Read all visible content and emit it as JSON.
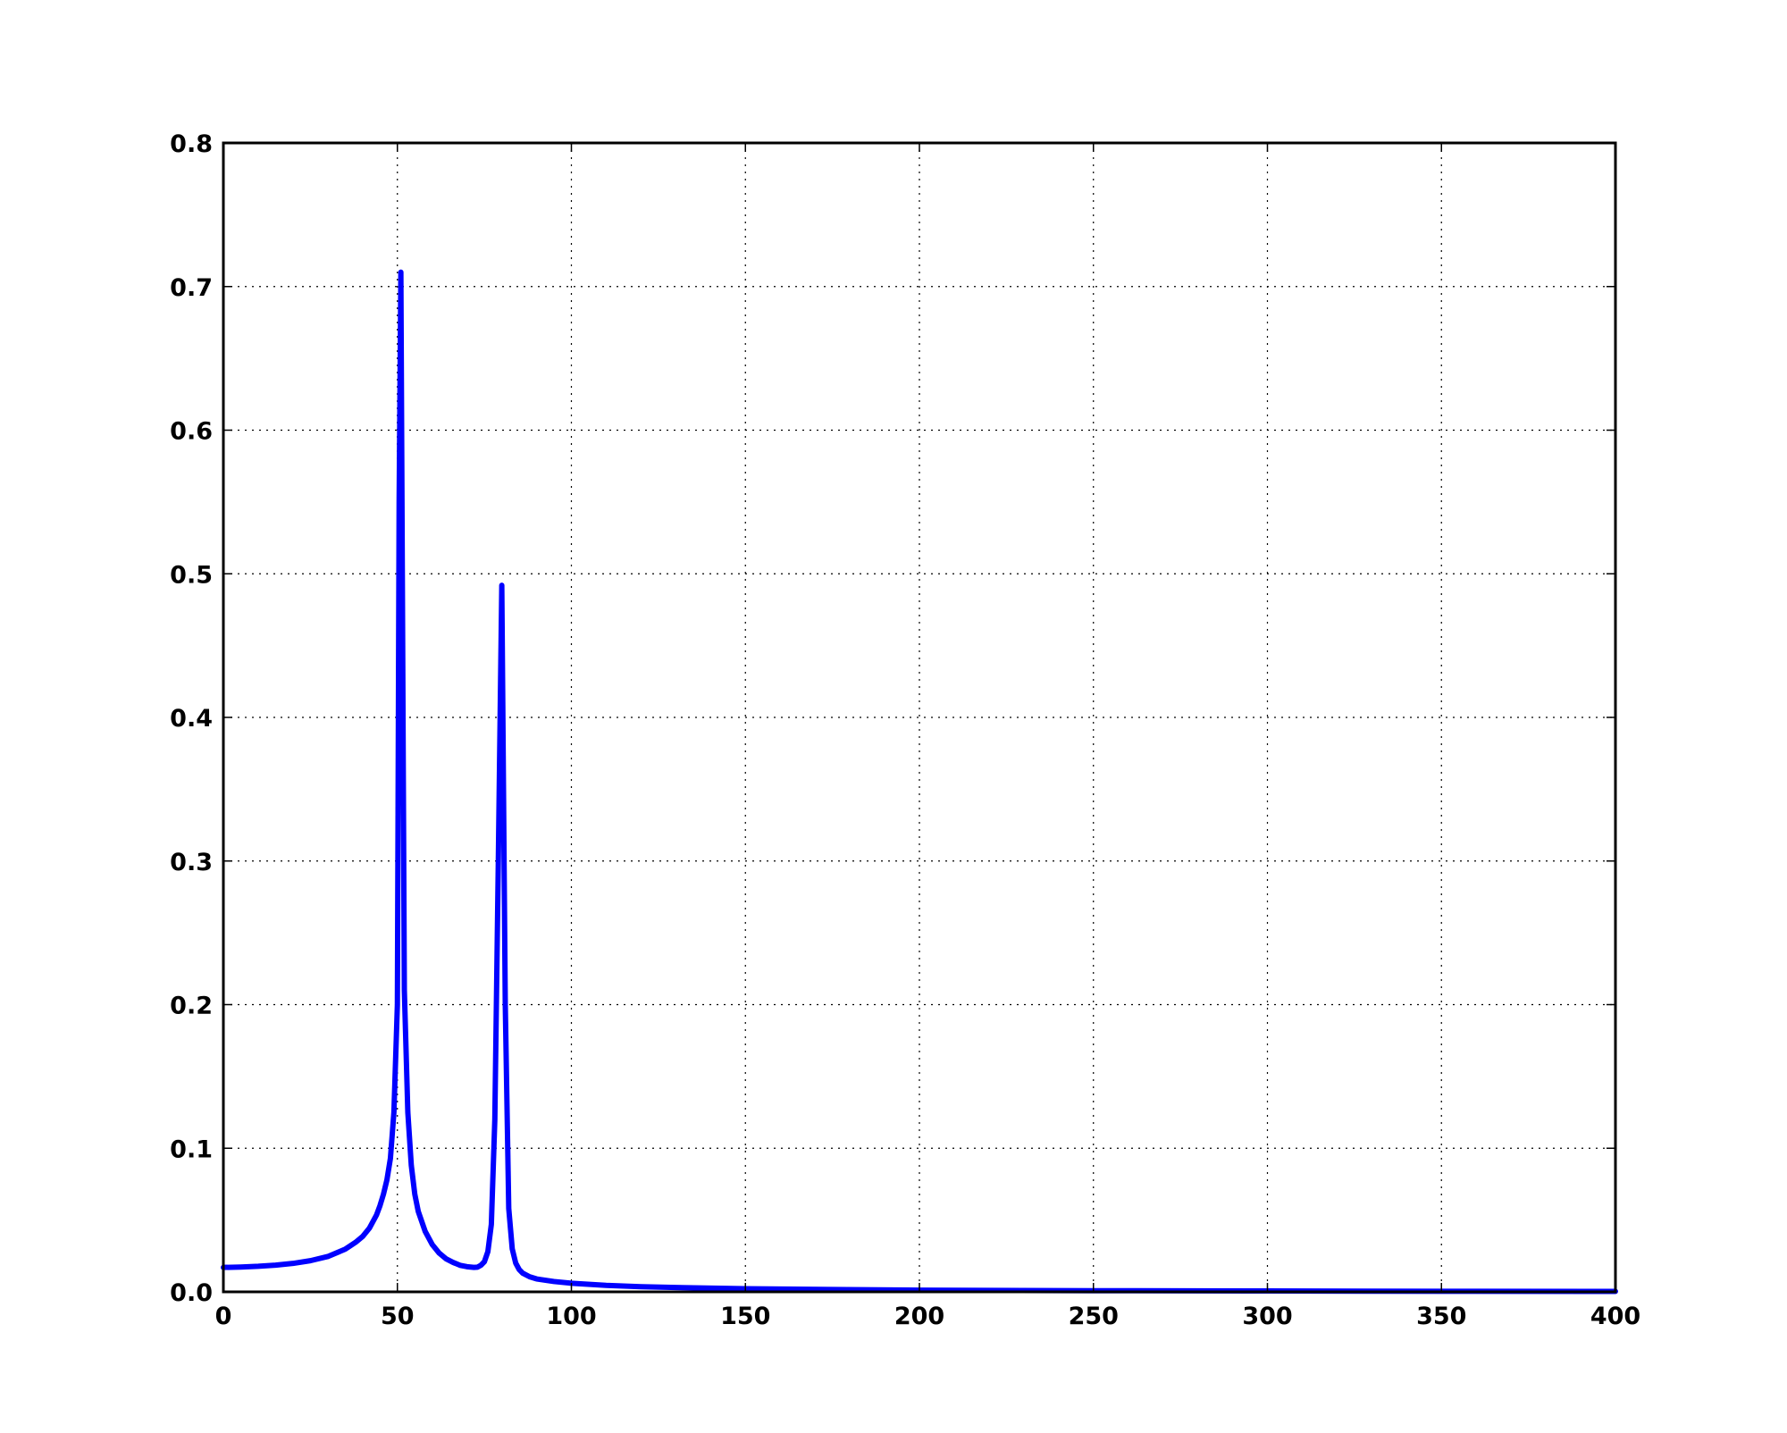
{
  "chart_data": {
    "type": "line",
    "title": "",
    "xlabel": "",
    "ylabel": "",
    "xlim": [
      0,
      400
    ],
    "ylim": [
      0,
      0.8
    ],
    "xticks": [
      0,
      50,
      100,
      150,
      200,
      250,
      300,
      350,
      400
    ],
    "xtick_labels": [
      "0",
      "50",
      "100",
      "150",
      "200",
      "250",
      "300",
      "350",
      "400"
    ],
    "yticks": [
      0,
      0.1,
      0.2,
      0.3,
      0.4,
      0.5,
      0.6,
      0.7,
      0.8
    ],
    "ytick_labels": [
      "0.0",
      "0.1",
      "0.2",
      "0.3",
      "0.4",
      "0.5",
      "0.6",
      "0.7",
      "0.8"
    ],
    "grid": true,
    "grid_style": "dotted",
    "legend": false,
    "line_color": "#0000ff",
    "axis_color": "#000000",
    "series": [
      {
        "x": [
          0,
          5,
          10,
          15,
          20,
          25,
          30,
          35,
          38,
          40,
          42,
          44,
          45,
          46,
          47,
          48,
          49,
          50,
          50.5,
          51,
          52,
          53,
          54,
          55,
          56,
          58,
          60,
          62,
          64,
          66,
          68,
          70,
          72,
          73,
          74,
          75,
          76,
          77,
          78,
          79,
          80,
          81,
          82,
          83,
          84,
          85,
          86,
          88,
          90,
          95,
          100,
          110,
          120,
          130,
          150,
          175,
          200,
          250,
          300,
          350,
          400
        ],
        "y": [
          0.017,
          0.0173,
          0.0178,
          0.0186,
          0.0198,
          0.0217,
          0.0246,
          0.0297,
          0.0345,
          0.0385,
          0.0445,
          0.0535,
          0.06,
          0.068,
          0.078,
          0.093,
          0.125,
          0.2,
          0.55,
          0.71,
          0.21,
          0.125,
          0.088,
          0.068,
          0.056,
          0.042,
          0.033,
          0.027,
          0.023,
          0.0205,
          0.0185,
          0.0175,
          0.017,
          0.0172,
          0.0185,
          0.021,
          0.028,
          0.047,
          0.12,
          0.3,
          0.492,
          0.2,
          0.058,
          0.03,
          0.02,
          0.0155,
          0.013,
          0.0105,
          0.009,
          0.0072,
          0.006,
          0.0045,
          0.0036,
          0.003,
          0.0022,
          0.0016,
          0.0012,
          0.0008,
          0.0006,
          0.0004,
          0.0003
        ]
      }
    ]
  }
}
